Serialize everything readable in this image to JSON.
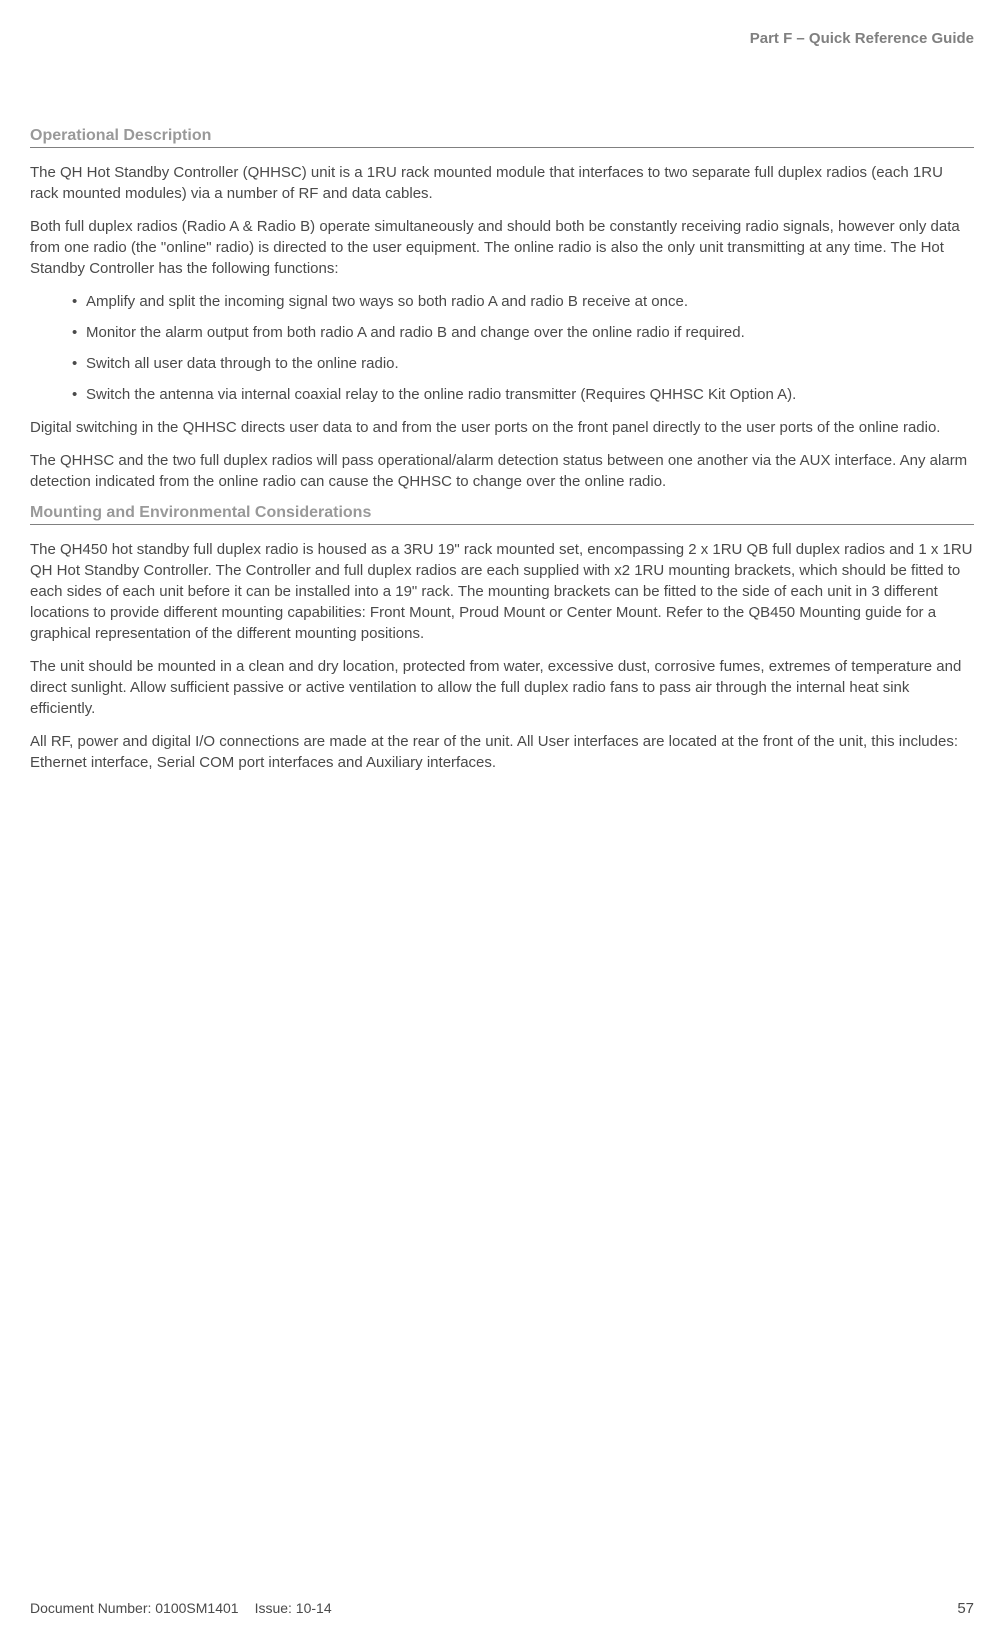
{
  "header": {
    "part_label": "Part F – Quick Reference Guide"
  },
  "section1": {
    "heading": "Operational Description",
    "p1": "The QH Hot Standby Controller (QHHSC) unit is a 1RU rack mounted module that interfaces to two separate full duplex radios (each 1RU rack mounted modules) via a number of RF and data cables.",
    "p2": "Both full duplex radios (Radio A & Radio B) operate simultaneously and should both be constantly receiving radio signals, however only data from one radio (the \"online\" radio) is directed to the user equipment. The online radio is also the only unit transmitting at any time. The Hot Standby Controller has the following functions:",
    "bullets": [
      "Amplify and split the incoming signal two ways so both radio A and radio B receive at once.",
      "Monitor the alarm output from both radio A and radio B and change over the online radio if required.",
      "Switch all user data through to the online radio.",
      "Switch the antenna via internal coaxial relay to the online radio transmitter (Requires QHHSC Kit Option A)."
    ],
    "p3": "Digital switching in the QHHSC directs user data to and from the user ports on the front panel directly to the user ports of the online radio.",
    "p4": "The QHHSC and the two full duplex radios will pass operational/alarm detection status between one another via the AUX interface. Any alarm detection indicated from the online radio can cause the QHHSC to change over the online radio."
  },
  "section2": {
    "heading": "Mounting and Environmental Considerations",
    "p1": "The QH450 hot standby full duplex radio is housed as a 3RU 19\" rack mounted set, encompassing 2 x 1RU QB full duplex radios and 1 x 1RU QH Hot Standby Controller. The Controller and full duplex radios are each supplied with x2 1RU mounting brackets, which should be fitted to each sides of each unit before it can be installed into a 19\" rack. The mounting brackets can be fitted to the side of each unit in 3 different locations to provide different mounting capabilities: Front Mount, Proud Mount or Center Mount. Refer to the QB450 Mounting guide for a graphical representation of the different mounting positions.",
    "p2": "The unit should be mounted in a clean and dry location, protected from water, excessive dust, corrosive fumes, extremes of temperature and direct sunlight. Allow sufficient passive or active ventilation to allow the full duplex radio fans to pass air through the internal heat sink efficiently.",
    "p3": "All RF, power and digital I/O connections are made at the rear of the unit. All User interfaces are located at the front of the unit, this includes: Ethernet interface, Serial COM port interfaces and Auxiliary interfaces."
  },
  "footer": {
    "doc_number": "Document Number: 0100SM1401",
    "issue": "Issue: 10-14",
    "page": "57"
  }
}
